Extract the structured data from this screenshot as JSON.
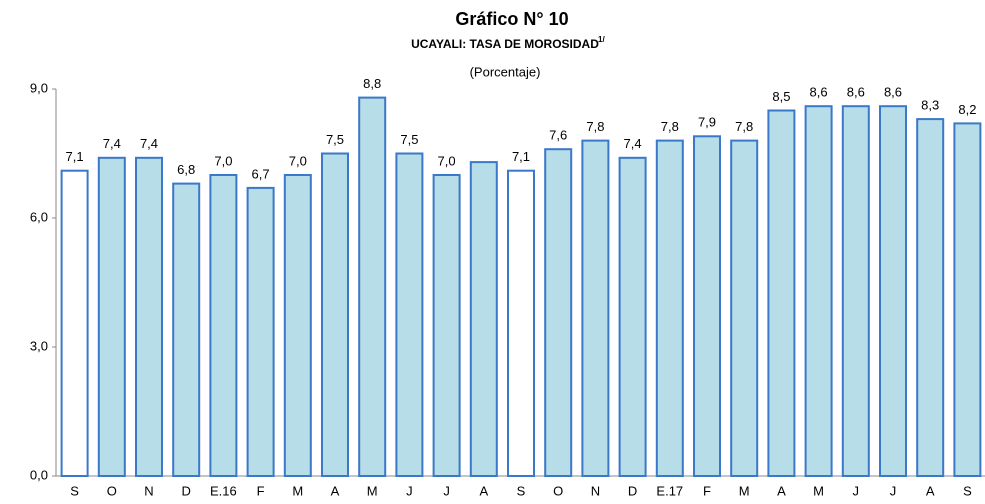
{
  "chart_data": {
    "type": "bar",
    "title": "Gráfico N° 10",
    "subtitle": "UCAYALI: TASA DE MOROSIDAD",
    "subtitle_note": "1/",
    "units": "(Porcentaje)",
    "categories": [
      "S",
      "O",
      "N",
      "D",
      "E.16",
      "F",
      "M",
      "A",
      "M",
      "J",
      "J",
      "A",
      "S",
      "O",
      "N",
      "D",
      "E.17",
      "F",
      "M",
      "A",
      "M",
      "J",
      "J",
      "A",
      "S"
    ],
    "values": [
      7.1,
      7.4,
      7.4,
      6.8,
      7.0,
      6.7,
      7.0,
      7.5,
      8.8,
      7.5,
      7.0,
      7.3,
      7.1,
      7.6,
      7.8,
      7.4,
      7.8,
      7.9,
      7.8,
      8.5,
      8.6,
      8.6,
      8.6,
      8.3,
      8.2
    ],
    "value_labels": [
      "7,1",
      "7,4",
      "7,4",
      "6,8",
      "7,0",
      "6,7",
      "7,0",
      "7,5",
      "8,8",
      "7,5",
      "7,0",
      null,
      "7,1",
      "7,6",
      "7,8",
      "7,4",
      "7,8",
      "7,9",
      "7,8",
      "8,5",
      "8,6",
      "8,6",
      "8,6",
      "8,3",
      "8,2"
    ],
    "colors": [
      "#ffffff",
      "#b7dde8",
      "#b7dde8",
      "#b7dde8",
      "#b7dde8",
      "#b7dde8",
      "#b7dde8",
      "#b7dde8",
      "#b7dde8",
      "#b7dde8",
      "#b7dde8",
      "#b7dde8",
      "#ffffff",
      "#b7dde8",
      "#b7dde8",
      "#b7dde8",
      "#b7dde8",
      "#b7dde8",
      "#b7dde8",
      "#b7dde8",
      "#b7dde8",
      "#b7dde8",
      "#b7dde8",
      "#b7dde8",
      "#b7dde8"
    ],
    "edge_color": "#3a78c9",
    "ylim": [
      0,
      9
    ],
    "yticks": [
      {
        "value": 0,
        "label": "0,0"
      },
      {
        "value": 3,
        "label": "3,0"
      },
      {
        "value": 6,
        "label": "6,0"
      },
      {
        "value": 9,
        "label": "9,0"
      }
    ],
    "grid": false
  }
}
